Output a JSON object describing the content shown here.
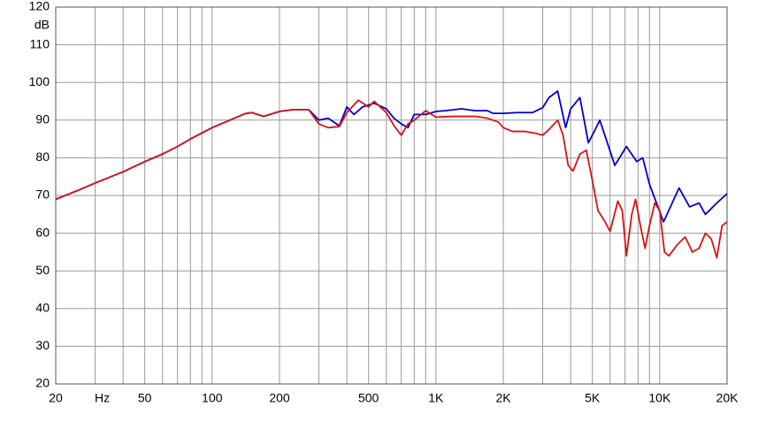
{
  "chart_data": {
    "type": "line",
    "x_label": "Hz",
    "y_label": "dB",
    "xscale": "log",
    "xlim": [
      20,
      20000
    ],
    "ylim": [
      20,
      120
    ],
    "xticks": [
      20,
      50,
      100,
      200,
      500,
      {
        "value": 1000,
        "label": "1K"
      },
      {
        "value": 2000,
        "label": "2K"
      },
      {
        "value": 5000,
        "label": "5K"
      },
      {
        "value": 10000,
        "label": "10K"
      },
      {
        "value": 20000,
        "label": "20K"
      }
    ],
    "x_label_at": 30,
    "xminor_ticks": [
      30,
      40,
      60,
      70,
      80,
      90,
      300,
      400,
      600,
      700,
      800,
      900,
      3000,
      4000,
      6000,
      7000,
      8000,
      9000
    ],
    "yticks": [
      20,
      30,
      40,
      50,
      60,
      70,
      80,
      90,
      100,
      110,
      120
    ],
    "grid": true,
    "series": [
      {
        "color": "#0000cc",
        "x": [
          20,
          25,
          30,
          40,
          50,
          60,
          70,
          80,
          100,
          120,
          140,
          150,
          170,
          200,
          230,
          270,
          300,
          330,
          370,
          400,
          430,
          470,
          530,
          600,
          650,
          700,
          750,
          800,
          900,
          1000,
          1100,
          1300,
          1500,
          1700,
          1800,
          2000,
          2300,
          2500,
          2700,
          3000,
          3200,
          3500,
          3800,
          4000,
          4400,
          4800,
          5000,
          5400,
          6300,
          7100,
          7900,
          8400,
          9000,
          9400,
          10400,
          12200,
          13600,
          15000,
          16000,
          18000,
          20000
        ],
        "values": [
          69,
          71.3,
          73.3,
          76.3,
          79,
          81,
          83,
          85,
          88,
          90,
          91.7,
          92,
          91,
          92.3,
          92.8,
          92.8,
          90,
          90.5,
          88.5,
          93.5,
          91.5,
          93.5,
          94.5,
          93,
          90.5,
          89,
          88,
          91.5,
          91.5,
          92.3,
          92.5,
          93,
          92.5,
          92.5,
          91.8,
          91.8,
          92,
          92,
          92,
          93.3,
          96,
          97.7,
          88,
          93,
          96,
          84,
          86,
          90,
          78,
          83,
          79,
          80,
          73,
          70,
          63,
          72,
          67,
          68,
          65,
          68,
          70.5
        ]
      },
      {
        "color": "#dd1111",
        "x": [
          20,
          25,
          30,
          40,
          50,
          60,
          70,
          80,
          100,
          120,
          140,
          150,
          170,
          200,
          230,
          270,
          300,
          330,
          370,
          400,
          450,
          500,
          530,
          600,
          650,
          700,
          750,
          800,
          900,
          1000,
          1200,
          1500,
          1700,
          1900,
          2000,
          2200,
          2500,
          2800,
          3000,
          3200,
          3500,
          3700,
          3900,
          4100,
          4400,
          4700,
          5000,
          5300,
          5700,
          6000,
          6500,
          6800,
          7100,
          7500,
          7800,
          8200,
          8600,
          9000,
          9500,
          10000,
          10500,
          11000,
          12000,
          13000,
          14000,
          15000,
          16000,
          17000,
          18000,
          19000,
          20000
        ],
        "values": [
          69,
          71.3,
          73.3,
          76.3,
          79,
          81,
          83,
          85,
          88,
          90,
          91.7,
          92,
          91,
          92.3,
          92.8,
          92.8,
          89,
          88,
          88.3,
          92,
          95.3,
          93.5,
          95,
          92,
          88.5,
          86,
          89,
          90,
          92.5,
          90.8,
          91,
          91,
          90.5,
          89.5,
          88,
          87,
          87,
          86.5,
          86,
          87.5,
          90,
          86,
          78,
          76.5,
          81,
          82,
          74,
          66,
          63,
          60.5,
          68.5,
          66,
          54,
          65,
          69,
          62,
          56,
          62,
          68,
          66,
          55,
          54,
          57,
          59,
          55,
          56,
          60,
          58.5,
          53.5,
          62,
          63
        ]
      }
    ]
  }
}
